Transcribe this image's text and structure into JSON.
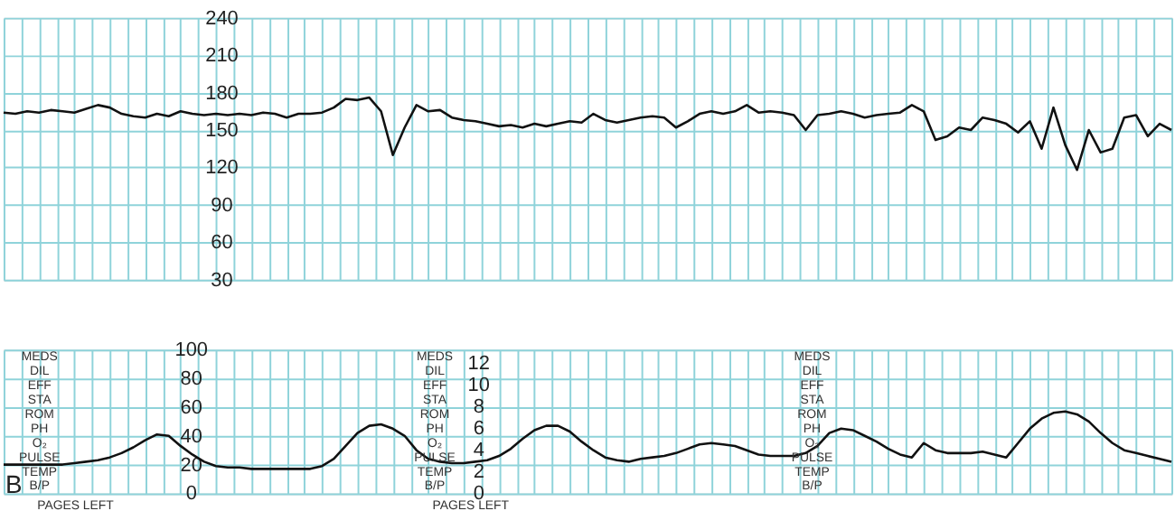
{
  "chart_data": [
    {
      "type": "line",
      "categories": [
        null,
        null,
        null,
        null,
        null,
        null,
        null,
        null,
        null,
        null,
        null,
        null,
        null,
        null,
        null,
        null,
        null,
        null,
        null,
        null,
        null,
        null,
        null,
        null,
        null,
        null,
        null,
        null,
        null,
        null,
        null,
        null,
        null,
        null,
        null,
        null,
        null,
        null,
        null,
        null,
        null,
        null,
        null,
        null,
        null,
        null,
        null,
        null,
        null,
        null,
        null,
        null,
        null,
        null,
        null,
        null,
        null,
        null,
        null,
        null,
        null,
        null,
        null,
        null,
        null,
        null,
        null,
        null,
        null,
        null,
        null,
        null,
        null,
        null,
        null,
        null,
        null,
        null,
        null,
        null,
        null,
        null,
        null,
        null,
        null,
        null,
        null,
        null,
        null,
        null,
        null,
        null,
        null,
        null,
        null,
        null,
        null,
        null,
        null,
        null
      ],
      "series": [
        {
          "color": "#111111",
          "values": [
            164,
            163,
            165,
            164,
            166,
            165,
            164,
            167,
            170,
            168,
            163,
            161,
            160,
            163,
            161,
            165,
            163,
            162,
            163,
            162,
            163,
            162,
            164,
            163,
            160,
            163,
            163,
            164,
            168,
            175,
            174,
            176,
            165,
            130,
            152,
            170,
            165,
            166,
            160,
            158,
            157,
            155,
            153,
            154,
            152,
            155,
            153,
            155,
            157,
            156,
            163,
            158,
            156,
            158,
            160,
            161,
            160,
            152,
            157,
            163,
            165,
            163,
            165,
            170,
            164,
            165,
            164,
            162,
            150,
            162,
            163,
            165,
            163,
            160,
            162,
            163,
            164,
            170,
            165,
            142,
            145,
            152,
            150,
            160,
            158,
            155,
            148,
            157,
            135,
            168,
            138,
            118,
            150,
            132,
            135,
            160,
            162,
            145,
            155,
            150
          ]
        }
      ],
      "ylim": [
        30,
        240
      ],
      "yticks": [
        30,
        60,
        90,
        120,
        150,
        180,
        210,
        240
      ],
      "grid": true,
      "tick_labels": "y",
      "line_style": "solid"
    },
    {
      "type": "line",
      "categories": [
        null,
        null,
        null,
        null,
        null,
        null,
        null,
        null,
        null,
        null,
        null,
        null,
        null,
        null,
        null,
        null,
        null,
        null,
        null,
        null,
        null,
        null,
        null,
        null,
        null,
        null,
        null,
        null,
        null,
        null,
        null,
        null,
        null,
        null,
        null,
        null,
        null,
        null,
        null,
        null,
        null,
        null,
        null,
        null,
        null,
        null,
        null,
        null,
        null,
        null,
        null,
        null,
        null,
        null,
        null,
        null,
        null,
        null,
        null,
        null,
        null,
        null,
        null,
        null,
        null,
        null,
        null,
        null,
        null,
        null,
        null,
        null,
        null,
        null,
        null,
        null,
        null,
        null,
        null,
        null,
        null,
        null,
        null,
        null,
        null,
        null,
        null,
        null,
        null,
        null,
        null,
        null,
        null,
        null,
        null,
        null,
        null,
        null,
        null,
        null
      ],
      "series": [
        {
          "color": "#111111",
          "values": [
            20,
            20,
            20,
            20,
            20,
            20,
            21,
            22,
            23,
            25,
            28,
            32,
            37,
            41,
            40,
            33,
            27,
            22,
            19,
            18,
            18,
            17,
            17,
            17,
            17,
            17,
            17,
            19,
            24,
            33,
            42,
            47,
            48,
            45,
            40,
            30,
            24,
            22,
            21,
            21,
            22,
            23,
            26,
            31,
            38,
            44,
            47,
            47,
            43,
            36,
            30,
            25,
            23,
            22,
            24,
            25,
            26,
            28,
            31,
            34,
            35,
            34,
            33,
            30,
            27,
            26,
            26,
            26,
            28,
            33,
            42,
            45,
            44,
            40,
            36,
            31,
            27,
            25,
            35,
            30,
            28,
            28,
            28,
            29,
            27,
            25,
            35,
            45,
            52,
            56,
            57,
            55,
            50,
            42,
            35,
            30,
            28,
            26,
            24,
            22
          ]
        }
      ],
      "ylim": [
        0,
        100
      ],
      "yticks": [
        0,
        20,
        40,
        60,
        80,
        100
      ],
      "y2lim": [
        0,
        13.2
      ],
      "y2ticks": [
        0,
        2,
        4,
        6,
        8,
        10,
        12
      ],
      "grid": true,
      "tick_labels": "y",
      "line_style": "solid",
      "annotations": [
        "MEDS",
        "DIL",
        "EFF",
        "STA",
        "ROM",
        "PH",
        "O₂",
        "PULSE",
        "TEMP",
        "B/P",
        "PAGES LEFT",
        "B"
      ]
    }
  ]
}
